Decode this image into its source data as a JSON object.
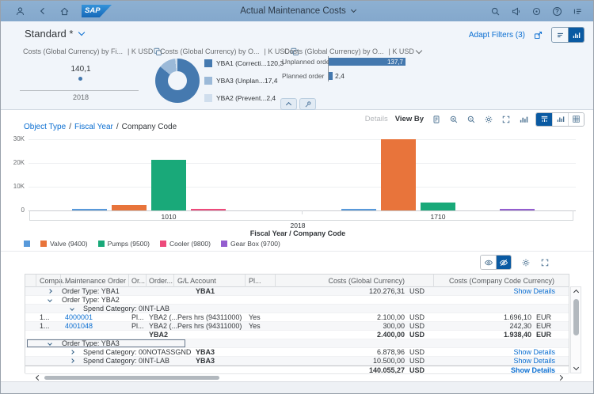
{
  "shell": {
    "logo": "SAP",
    "title": "Actual Maintenance Costs",
    "left_icons": [
      "person",
      "back",
      "home"
    ],
    "right_icons": [
      "search",
      "notifications",
      "copilot",
      "help",
      "me-area"
    ]
  },
  "filter_bar": {
    "variant_title": "Standard *",
    "adapt_filters_label": "Adapt Filters (3)",
    "icons": [
      "share",
      "compact-filter",
      "visual-filter"
    ]
  },
  "cards": [
    {
      "title": "Costs (Global Currency) by Fi...",
      "unit": "| K USD",
      "type": "point",
      "value": "140,1",
      "axis_label": "2018",
      "point_color": "#4478AE"
    },
    {
      "title": "Costs (Global Currency) by O...",
      "unit": "| K USD",
      "type": "donut",
      "legend": [
        {
          "label": "YBA1 (Correcti...",
          "value": "120,3",
          "color": "#4579AF"
        },
        {
          "label": "YBA3 (Unplan...",
          "value": "17,4",
          "color": "#9BB9D8"
        },
        {
          "label": "YBA2 (Prevent...",
          "value": "2,4",
          "color": "#D0DEED"
        }
      ]
    },
    {
      "title": "Costs (Global Currency) by O...",
      "unit": "| K USD",
      "type": "hbar",
      "bar_color": "#4478AE",
      "bars": [
        {
          "label": "Unplanned order",
          "value": "137,7"
        },
        {
          "label": "Planned order",
          "value": "2,4"
        }
      ]
    }
  ],
  "chart_toolbar": {
    "details_label": "Details",
    "view_by_label": "View By",
    "icons": [
      "legend",
      "zoom-in",
      "zoom-out",
      "settings",
      "fullscreen",
      "bar-chart",
      "chart-table-view",
      "chart-view",
      "table-view"
    ]
  },
  "breadcrumb": {
    "separator": "/",
    "items": [
      {
        "label": "Object Type",
        "link": true
      },
      {
        "label": "Fiscal Year",
        "link": true
      },
      {
        "label": "Company Code",
        "link": false
      }
    ]
  },
  "chart_data": {
    "type": "bar",
    "x_axis_title": "Fiscal Year / Company Code",
    "fiscal_year": "2018",
    "y_ticks": [
      "30K",
      "20K",
      "10K",
      "0"
    ],
    "ylim": [
      0,
      31700
    ],
    "grid": true,
    "legend_position": "bottom-left",
    "groups": [
      "1010",
      "1710"
    ],
    "series": [
      {
        "name": "",
        "color": "#5899DA",
        "values": {
          "1010": 800,
          "1710": 500
        }
      },
      {
        "name": "Valve (9400)",
        "color": "#E8743B",
        "values": {
          "1010": 2500,
          "1710": 30000
        }
      },
      {
        "name": "Pumps (9500)",
        "color": "#19A979",
        "values": {
          "1010": 21500,
          "1710": 3300
        }
      },
      {
        "name": "Cooler (9800)",
        "color": "#ED4A7B",
        "values": {
          "1010": 500,
          "1710": 0
        }
      },
      {
        "name": "Gear Box (9700)",
        "color": "#945ECF",
        "values": {
          "1010": 0,
          "1710": 500
        }
      }
    ]
  },
  "table": {
    "headers": [
      "Compa...",
      "Maintenance Order",
      "Or...",
      "Order...",
      "G/L Account",
      "Pl...",
      "Costs (Global Currency)",
      "Costs (Company Code Currency)"
    ],
    "rows": [
      {
        "kind": "group",
        "indent": 1,
        "arrow": "right",
        "label": "Order Type: YBA1",
        "order": "YBA1",
        "cost_g": "120.276,31",
        "cur_g": "USD",
        "detail": "Show Details"
      },
      {
        "kind": "group",
        "indent": 1,
        "arrow": "down",
        "label": "Order Type: YBA2"
      },
      {
        "kind": "group",
        "indent": 2,
        "arrow": "down",
        "label": "Spend Category: 0INT-LAB"
      },
      {
        "kind": "item",
        "compa": "1...",
        "mo": "4000001",
        "or": "Pl...",
        "order": "YBA2 (...",
        "gl": "Pers hrs (94311000)",
        "pl": "Yes",
        "cost_g": "2.100,00",
        "cur_g": "USD",
        "cost_cc": "1.696,10",
        "cur_cc": "EUR"
      },
      {
        "kind": "item",
        "compa": "1...",
        "mo": "4001048",
        "or": "Pl...",
        "order": "YBA2 (...",
        "gl": "Pers hrs (94311000)",
        "pl": "Yes",
        "cost_g": "300,00",
        "cur_g": "USD",
        "cost_cc": "242,30",
        "cur_cc": "EUR"
      },
      {
        "kind": "subtotal",
        "order": "YBA2",
        "cost_g": "2.400,00",
        "cur_g": "USD",
        "cost_cc": "1.938,40",
        "cur_cc": "EUR"
      },
      {
        "kind": "group",
        "indent": 1,
        "arrow": "down",
        "label": "Order Type: YBA3",
        "focused": true
      },
      {
        "kind": "group",
        "indent": 2,
        "arrow": "right",
        "label": "Spend Category: 00NOTASSGND",
        "order": "YBA3",
        "cost_g": "6.878,96",
        "cur_g": "USD",
        "detail": "Show Details"
      },
      {
        "kind": "group",
        "indent": 2,
        "arrow": "right",
        "label": "Spend Category: 0INT-LAB",
        "order": "YBA3",
        "cost_g": "10.500,00",
        "cur_g": "USD",
        "detail": "Show Details"
      },
      {
        "kind": "total",
        "cost_g": "140.055,27",
        "cur_g": "USD",
        "detail": "Show Details"
      }
    ]
  }
}
